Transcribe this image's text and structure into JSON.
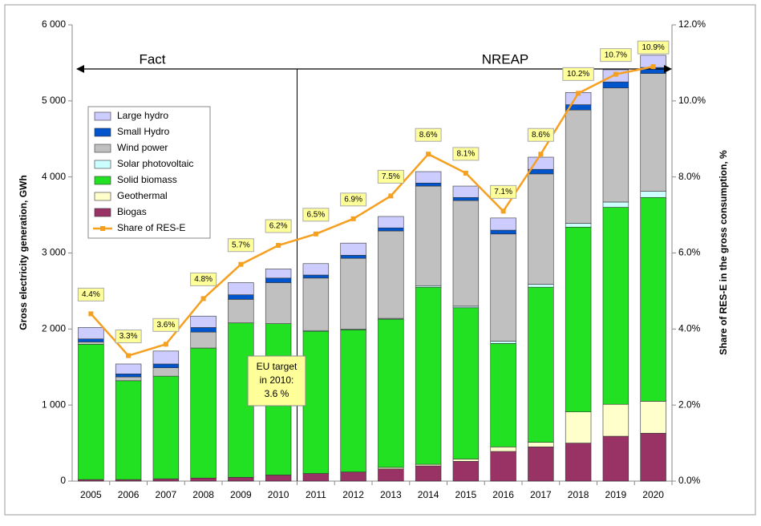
{
  "chart_data": {
    "type": "stacked-bar-line",
    "categories": [
      "2005",
      "2006",
      "2007",
      "2008",
      "2009",
      "2010",
      "2011",
      "2012",
      "2013",
      "2014",
      "2015",
      "2016",
      "2017",
      "2018",
      "2019",
      "2020"
    ],
    "series": [
      {
        "name": "Biogas",
        "color": "#993366",
        "values": [
          20,
          20,
          30,
          40,
          50,
          80,
          100,
          120,
          160,
          200,
          260,
          390,
          450,
          500,
          590,
          630
        ]
      },
      {
        "name": "Geothermal",
        "color": "#ffffcc",
        "values": [
          0,
          0,
          0,
          0,
          0,
          0,
          0,
          0,
          20,
          20,
          30,
          60,
          60,
          410,
          420,
          420
        ]
      },
      {
        "name": "Solid biomass",
        "color": "#22e022",
        "values": [
          1780,
          1300,
          1350,
          1710,
          2030,
          1990,
          1870,
          1870,
          1950,
          2330,
          1990,
          1360,
          2040,
          2430,
          2590,
          2680
        ]
      },
      {
        "name": "Solar photovoltaic",
        "color": "#ccffff",
        "values": [
          0,
          0,
          0,
          0,
          0,
          0,
          10,
          10,
          10,
          20,
          20,
          30,
          40,
          50,
          70,
          80
        ]
      },
      {
        "name": "Wind power",
        "color": "#c0c0c0",
        "values": [
          30,
          50,
          110,
          210,
          310,
          540,
          690,
          930,
          1150,
          1310,
          1390,
          1410,
          1450,
          1490,
          1500,
          1550
        ]
      },
      {
        "name": "Small Hydro",
        "color": "#0055cc",
        "values": [
          40,
          40,
          50,
          60,
          60,
          60,
          40,
          40,
          40,
          40,
          40,
          50,
          60,
          70,
          80,
          80
        ]
      },
      {
        "name": "Large hydro",
        "color": "#ccccff",
        "values": [
          150,
          130,
          170,
          150,
          160,
          120,
          150,
          160,
          150,
          150,
          150,
          160,
          160,
          160,
          160,
          160
        ]
      },
      {
        "name": "Share of RES-E",
        "color": "#f5a020",
        "axis": "y2",
        "values": [
          4.4,
          3.3,
          3.6,
          4.8,
          5.7,
          6.2,
          6.5,
          6.9,
          7.5,
          8.6,
          8.1,
          7.1,
          8.6,
          10.2,
          10.7,
          10.9
        ],
        "value_labels": [
          "4.4%",
          "3.3%",
          "3.6%",
          "4.8%",
          "5.7%",
          "6.2%",
          "6.5%",
          "6.9%",
          "7.5%",
          "8.6%",
          "8.1%",
          "7.1%",
          "8.6%",
          "10.2%",
          "10.7%",
          "10.9%"
        ]
      }
    ],
    "ylabel": "Gross electricity generation, GWh",
    "y2label": "Share of RES-E in the gross consumption, %",
    "ylim": [
      0,
      6000
    ],
    "yticks": [
      0,
      {
        "value": 1000,
        "label": "1 000"
      },
      {
        "value": 2000,
        "label": "2 000"
      },
      {
        "value": 3000,
        "label": "3 000"
      },
      {
        "value": 4000,
        "label": "4 000"
      },
      {
        "value": 5000,
        "label": "5 000"
      },
      {
        "value": 6000,
        "label": "6 000"
      }
    ],
    "y2lim": [
      0,
      12
    ],
    "y2ticks": [
      {
        "value": 0,
        "label": "0.0%"
      },
      {
        "value": 2,
        "label": "2.0%"
      },
      {
        "value": 4,
        "label": "4.0%"
      },
      {
        "value": 6,
        "label": "6.0%"
      },
      {
        "value": 8,
        "label": "8.0%"
      },
      {
        "value": 10,
        "label": "10.0%"
      },
      {
        "value": 12,
        "label": "12.0%"
      }
    ],
    "legend": "upper left",
    "annotations": {
      "fact": "Fact",
      "nreap": "NREAP",
      "eu_target": [
        "EU target",
        "in 2010:",
        "3.6 %"
      ]
    }
  }
}
